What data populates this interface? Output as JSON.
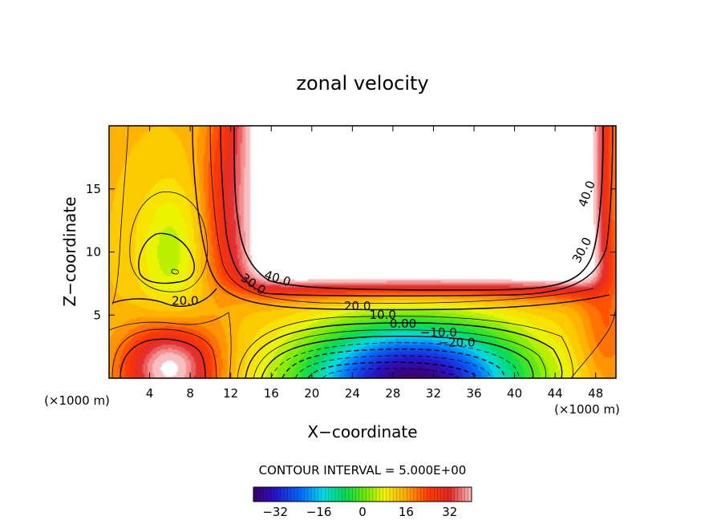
{
  "chart_data": {
    "type": "heatmap",
    "title": "zonal velocity",
    "xlabel": "X−coordinate",
    "ylabel": "Z−coordinate",
    "x_unit_left": "(×1000 m)",
    "x_unit_right": "(×1000 m)",
    "xlim": [
      0,
      50
    ],
    "ylim": [
      0,
      20
    ],
    "x_ticks": [
      4,
      8,
      12,
      16,
      20,
      24,
      28,
      32,
      36,
      40,
      44,
      48
    ],
    "y_ticks": [
      5,
      10,
      15
    ],
    "contour_interval_text": "CONTOUR INTERVAL = 5.000E+00",
    "colorbar": {
      "min": -40,
      "max": 40,
      "ticks": [
        -32,
        -16,
        0,
        16,
        32
      ],
      "tick_labels": [
        "−32",
        "−16",
        "0",
        "16",
        "32"
      ]
    },
    "contour_labels": [
      {
        "text": "40.0",
        "x": 47.5,
        "z": 14.5,
        "angle": -70
      },
      {
        "text": "30.0",
        "x": 47.0,
        "z": 10.0,
        "angle": -62
      },
      {
        "text": "40.0",
        "x": 16.5,
        "z": 7.6,
        "angle": 18
      },
      {
        "text": "30.0",
        "x": 14.0,
        "z": 7.2,
        "angle": 35
      },
      {
        "text": "20.0",
        "x": 7.5,
        "z": 5.8,
        "angle": 0
      },
      {
        "text": "20.0",
        "x": 24.5,
        "z": 5.4,
        "angle": 0
      },
      {
        "text": "10.0",
        "x": 27.0,
        "z": 4.7,
        "angle": 0
      },
      {
        "text": "0.00",
        "x": 29.0,
        "z": 4.0,
        "angle": 0
      },
      {
        "text": "−10.0",
        "x": 32.5,
        "z": 3.3,
        "angle": 0
      },
      {
        "text": "−20.0",
        "x": 34.3,
        "z": 2.5,
        "angle": 0
      }
    ],
    "field_features": [
      {
        "feature": "strong eastward jet (>40) upper centre-right",
        "x_range": [
          14,
          48
        ],
        "z_range": [
          7,
          20
        ],
        "value": 45
      },
      {
        "feature": "weak flow column left",
        "x_center": 6,
        "z_center": 10,
        "value": 12
      },
      {
        "feature": "westward core (min) near bottom",
        "x_center": 30,
        "z_center": 0,
        "value": -38
      },
      {
        "feature": "eastward patch bottom-left",
        "x_center": 6,
        "z_center": 2,
        "value": 40
      }
    ]
  }
}
